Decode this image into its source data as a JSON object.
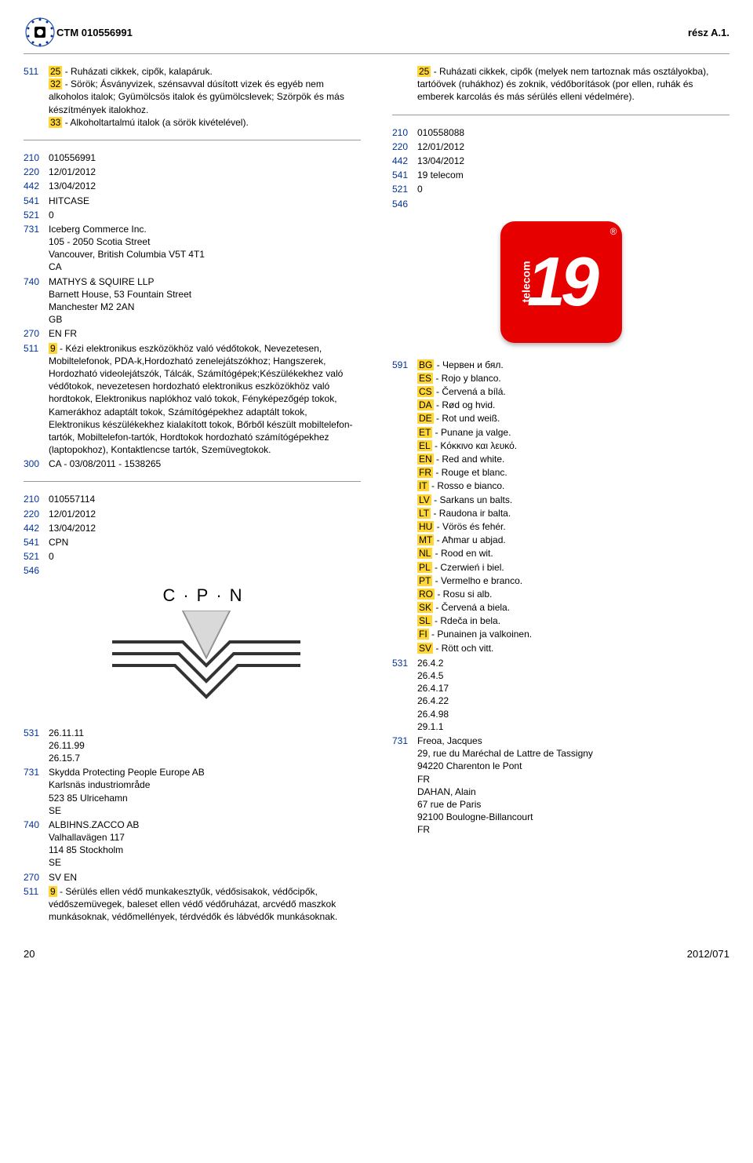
{
  "header": {
    "title_code": "CTM 010556991",
    "right": "rész A.1."
  },
  "footer": {
    "page": "20",
    "issue": "2012/071"
  },
  "left": {
    "block1": {
      "code": "511",
      "parts": [
        {
          "hl": "25",
          "text": " - Ruházati cikkek, cipők, kalapáruk."
        },
        {
          "hl": "32",
          "text": " - Sörök; Ásványvizek, szénsavval dúsított vizek és egyéb nem alkoholos italok; Gyümölcsös italok és gyümölcslevek; Szörpök és más készítmények italokhoz."
        },
        {
          "hl": "33",
          "text": " - Alkoholtartalmú italok (a sörök kivételével)."
        }
      ]
    },
    "rec1": {
      "210": "010556991",
      "220": "12/01/2012",
      "442": "13/04/2012",
      "541": "HITCASE",
      "521": "0",
      "731": "Iceberg Commerce Inc.\n105 - 2050 Scotia Street\nVancouver, British Columbia V5T 4T1\nCA",
      "740": "MATHYS & SQUIRE LLP\nBarnett House, 53 Fountain Street\nManchester M2 2AN\nGB",
      "270": "EN FR",
      "511_hl": "9",
      "511_text": " - Kézi elektronikus eszközökhöz való védőtokok, Nevezetesen, Mobiltelefonok, PDA-k,Hordozható zenelejátszókhoz; Hangszerek, Hordozható videolejátszók, Tálcák, Számítógépek;Készülékekhez való védőtokok, nevezetesen hordozható elektronikus eszközökhöz való hordtokok, Elektronikus naplókhoz való tokok, Fényképezőgép tokok, Kamerákhoz adaptált tokok, Számítógépekhez adaptált tokok, Elektronikus készülékekhez kialakított tokok, Bőrből készült mobiltelefon-tartók, Mobiltelefon-tartók, Hordtokok hordozható számítógépekhez (laptopokhoz), Kontaktlencse tartók, Szemüvegtokok.",
      "300": "CA - 03/08/2011 - 1538265"
    },
    "rec2": {
      "210": "010557114",
      "220": "12/01/2012",
      "442": "13/04/2012",
      "541": "CPN",
      "521": "0",
      "546": "",
      "531": "26.11.11\n26.11.99\n26.15.7",
      "731": "Skydda Protecting People Europe AB\nKarlsnäs industriområde\n523 85 Ulricehamn\nSE",
      "740": "ALBIHNS.ZACCO AB\nValhallavägen 117\n114 85 Stockholm\nSE",
      "270": "SV EN",
      "511_hl": "9",
      "511_text": " - Sérülés ellen védő munkakesztyűk, védősisakok, védőcipők, védőszemüvegek, baleset ellen védő védőruházat, arcvédő maszkok munkásoknak, védőmellények, térdvédők és lábvédők munkásoknak."
    }
  },
  "right": {
    "block1": {
      "hl": "25",
      "text": " - Ruházati cikkek, cipők (melyek nem tartoznak más osztályokba), tartóövek (ruhákhoz) és zoknik, védőborítások (por ellen, ruhák és emberek karcolás és más sérülés elleni védelmére)."
    },
    "rec1": {
      "210": "010558088",
      "220": "12/01/2012",
      "442": "13/04/2012",
      "541": "19 telecom",
      "521": "0",
      "546": ""
    },
    "colors": [
      {
        "code": "BG",
        "text": " - Червен и бял."
      },
      {
        "code": "ES",
        "text": " - Rojo y blanco."
      },
      {
        "code": "CS",
        "text": " - Červená a bílá."
      },
      {
        "code": "DA",
        "text": " - Rød og hvid."
      },
      {
        "code": "DE",
        "text": " - Rot und weiß."
      },
      {
        "code": "ET",
        "text": " - Punane ja valge."
      },
      {
        "code": "EL",
        "text": " - Κόκκινο και λευκό."
      },
      {
        "code": "EN",
        "text": " - Red and white."
      },
      {
        "code": "FR",
        "text": " - Rouge et blanc."
      },
      {
        "code": "IT",
        "text": " - Rosso e bianco."
      },
      {
        "code": "LV",
        "text": " - Sarkans un balts."
      },
      {
        "code": "LT",
        "text": " - Raudona ir balta."
      },
      {
        "code": "HU",
        "text": " - Vörös és fehér."
      },
      {
        "code": "MT",
        "text": " - Aħmar u abjad."
      },
      {
        "code": "NL",
        "text": " - Rood en wit."
      },
      {
        "code": "PL",
        "text": " - Czerwień i biel."
      },
      {
        "code": "PT",
        "text": " - Vermelho e branco."
      },
      {
        "code": "RO",
        "text": " - Rosu si alb."
      },
      {
        "code": "SK",
        "text": " - Červená a biela."
      },
      {
        "code": "SL",
        "text": " - Rdeča in bela."
      },
      {
        "code": "FI",
        "text": " - Punainen ja valkoinen."
      },
      {
        "code": "SV",
        "text": " - Rött och vitt."
      }
    ],
    "531": "26.4.2\n26.4.5\n26.4.17\n26.4.22\n26.4.98\n29.1.1",
    "731": "Freoa, Jacques\n29, rue du Maréchal de Lattre de Tassigny\n94220 Charenton le Pont\nFR\nDAHAN, Alain\n67 rue de Paris\n92100 Boulogne-Billancourt\nFR"
  }
}
